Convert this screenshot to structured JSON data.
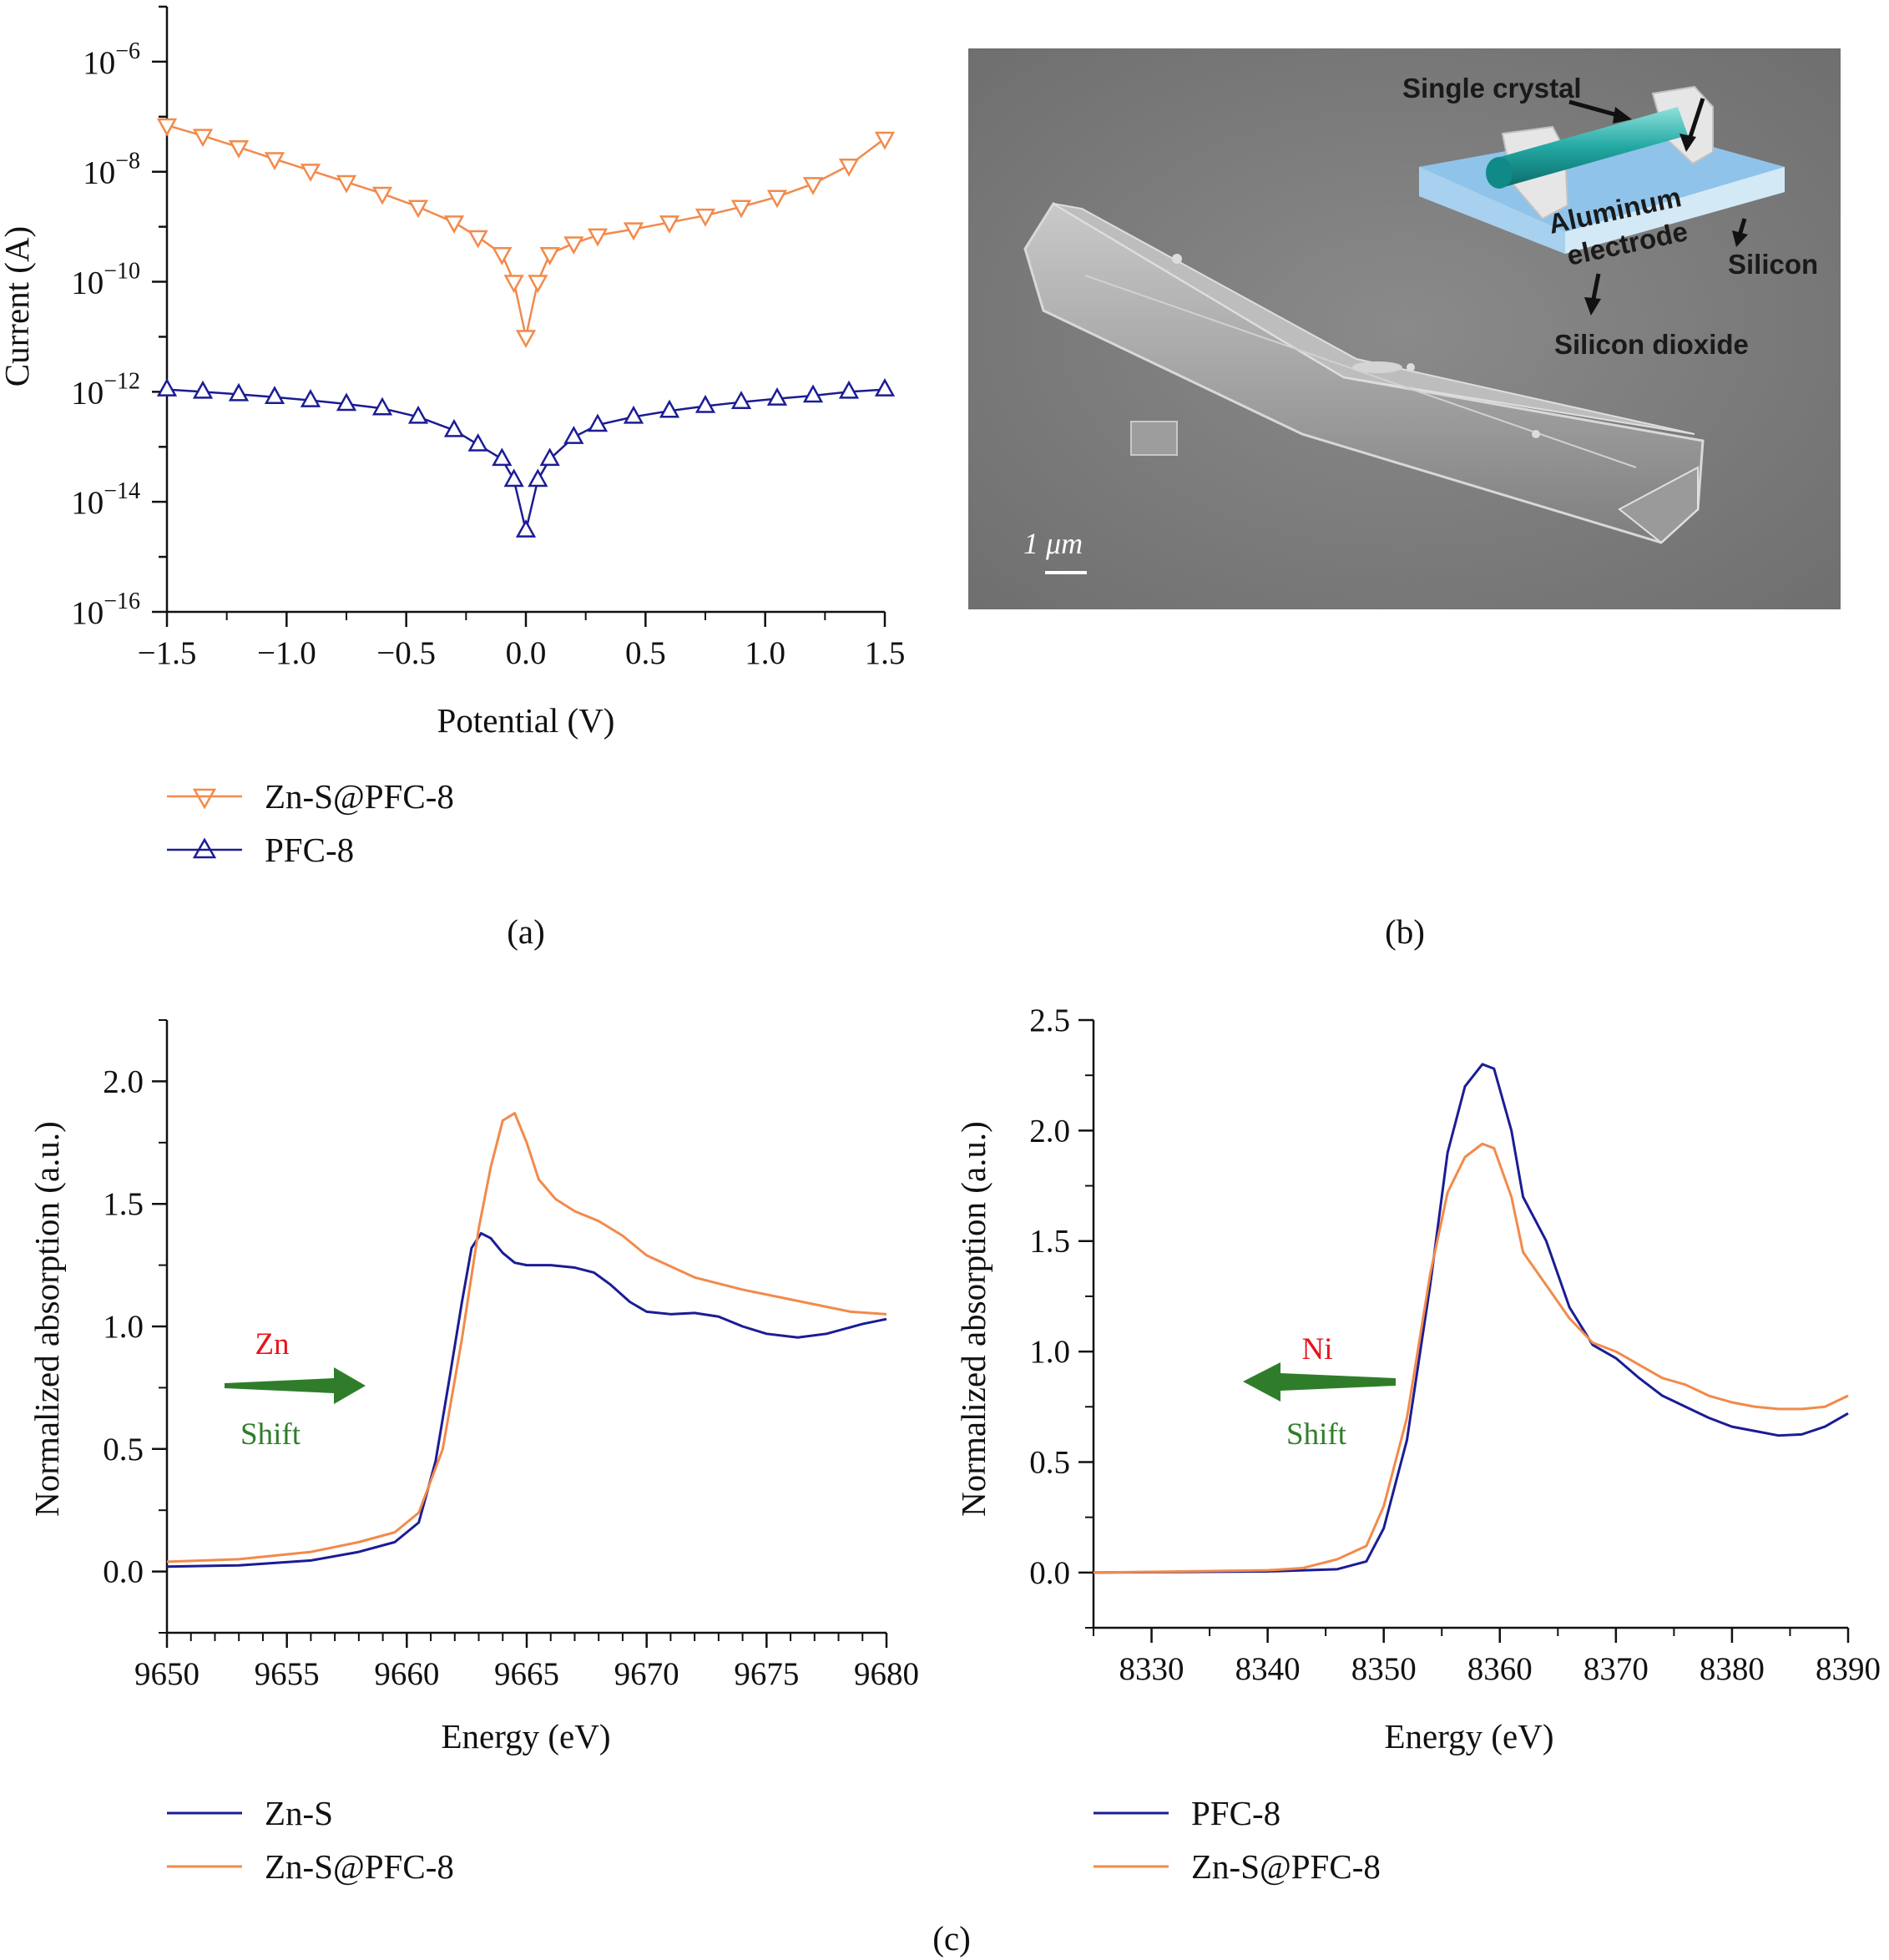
{
  "colors": {
    "orange": "#f28a4b",
    "blue": "#1b1c94",
    "green": "#2f7d2b",
    "red": "#e8131b"
  },
  "panel_labels": {
    "a": "(a)",
    "b": "(b)",
    "c": "(c)"
  },
  "chart_data": [
    {
      "id": "a",
      "type": "line",
      "xlabel": "Potential (V)",
      "ylabel": "Current (A)",
      "yscale": "log",
      "xlim": [
        -1.5,
        1.5
      ],
      "ylim_exp": [
        -16,
        -5
      ],
      "xticks": [
        "−1.5",
        "−1.0",
        "−0.5",
        "0.0",
        "0.5",
        "1.0",
        "1.5"
      ],
      "yticks_exp": [
        "−6",
        "−8",
        "−10",
        "−12",
        "−14",
        "−16"
      ],
      "legend": [
        "Zn-S@PFC-8",
        "PFC-8"
      ],
      "series": [
        {
          "name": "Zn-S@PFC-8",
          "color": "#f28a4b",
          "marker": "triangle-down",
          "x": [
            -1.5,
            -1.35,
            -1.2,
            -1.05,
            -0.9,
            -0.75,
            -0.6,
            -0.45,
            -0.3,
            -0.2,
            -0.1,
            -0.05,
            0.0,
            0.05,
            0.1,
            0.2,
            0.3,
            0.45,
            0.6,
            0.75,
            0.9,
            1.05,
            1.2,
            1.35,
            1.5
          ],
          "y": [
            7e-08,
            4.5e-08,
            2.8e-08,
            1.7e-08,
            1.05e-08,
            6.5e-09,
            4e-09,
            2.3e-09,
            1.2e-09,
            6.5e-10,
            3.2e-10,
            1e-10,
            1e-11,
            1e-10,
            3.2e-10,
            5e-10,
            7e-10,
            9e-10,
            1.2e-09,
            1.6e-09,
            2.3e-09,
            3.5e-09,
            6e-09,
            1.3e-08,
            4e-08
          ]
        },
        {
          "name": "PFC-8",
          "color": "#1b1c94",
          "marker": "triangle-up",
          "x": [
            -1.5,
            -1.35,
            -1.2,
            -1.05,
            -0.9,
            -0.75,
            -0.6,
            -0.45,
            -0.3,
            -0.2,
            -0.1,
            -0.05,
            0.0,
            0.05,
            0.1,
            0.2,
            0.3,
            0.45,
            0.6,
            0.75,
            0.9,
            1.05,
            1.2,
            1.35,
            1.5
          ],
          "y": [
            1.1e-12,
            1e-12,
            9e-13,
            8e-13,
            7e-13,
            6e-13,
            5e-13,
            3.5e-13,
            2e-13,
            1.1e-13,
            6e-14,
            2.5e-14,
            3e-15,
            2.5e-14,
            6e-14,
            1.5e-13,
            2.5e-13,
            3.5e-13,
            4.5e-13,
            5.5e-13,
            6.5e-13,
            7.5e-13,
            8.5e-13,
            1e-12,
            1.1e-12
          ]
        }
      ]
    },
    {
      "id": "c-left",
      "type": "line",
      "xlabel": "Energy (eV)",
      "ylabel": "Normalized absorption (a.u.)",
      "xlim": [
        9650,
        9680
      ],
      "ylim": [
        -0.25,
        2.25
      ],
      "xticks": [
        "9650",
        "9655",
        "9660",
        "9665",
        "9670",
        "9675",
        "9680"
      ],
      "yticks": [
        "0.0",
        "0.5",
        "1.0",
        "1.5",
        "2.0"
      ],
      "legend": [
        "Zn-S",
        "Zn-S@PFC-8"
      ],
      "series": [
        {
          "name": "Zn-S",
          "color": "#1b1c94",
          "x": [
            9650,
            9653,
            9656,
            9658,
            9659.5,
            9660.5,
            9661.2,
            9661.8,
            9662.3,
            9662.7,
            9663.1,
            9663.5,
            9664,
            9664.5,
            9665,
            9666,
            9667,
            9667.8,
            9668.5,
            9669.3,
            9670,
            9671,
            9672,
            9673,
            9674,
            9675,
            9676.3,
            9677.5,
            9679,
            9680
          ],
          "y": [
            0.02,
            0.025,
            0.045,
            0.08,
            0.12,
            0.2,
            0.45,
            0.8,
            1.1,
            1.32,
            1.38,
            1.36,
            1.3,
            1.26,
            1.25,
            1.25,
            1.24,
            1.22,
            1.17,
            1.1,
            1.06,
            1.05,
            1.055,
            1.04,
            1.0,
            0.97,
            0.955,
            0.97,
            1.01,
            1.03
          ]
        },
        {
          "name": "Zn-S@PFC-8",
          "color": "#f28a4b",
          "x": [
            9650,
            9653,
            9656,
            9658,
            9659.5,
            9660.5,
            9661.5,
            9662.3,
            9663,
            9663.5,
            9664,
            9664.5,
            9665,
            9665.5,
            9666.2,
            9667,
            9668,
            9669,
            9670,
            9672,
            9674,
            9675.5,
            9676.5,
            9677.5,
            9678.5,
            9680
          ],
          "y": [
            0.04,
            0.05,
            0.08,
            0.12,
            0.16,
            0.24,
            0.5,
            0.95,
            1.4,
            1.65,
            1.84,
            1.87,
            1.75,
            1.6,
            1.52,
            1.47,
            1.43,
            1.37,
            1.29,
            1.2,
            1.15,
            1.12,
            1.1,
            1.08,
            1.06,
            1.05
          ]
        }
      ],
      "annotations": {
        "element": "Zn",
        "shift": "Shift",
        "arrow": "right"
      }
    },
    {
      "id": "c-right",
      "type": "line",
      "xlabel": "Energy (eV)",
      "ylabel": "Normalized absorption (a.u.)",
      "xlim": [
        8325,
        8390
      ],
      "ylim": [
        -0.25,
        2.5
      ],
      "xticks": [
        "8330",
        "8340",
        "8350",
        "8360",
        "8370",
        "8380",
        "8390"
      ],
      "yticks": [
        "0.0",
        "0.5",
        "1.0",
        "1.5",
        "2.0",
        "2.5"
      ],
      "legend": [
        "PFC-8",
        "Zn-S@PFC-8"
      ],
      "series": [
        {
          "name": "PFC-8",
          "color": "#1b1c94",
          "x": [
            8325,
            8340,
            8346,
            8348.5,
            8350,
            8352,
            8354,
            8355.5,
            8357,
            8358.5,
            8359.5,
            8361,
            8362,
            8364,
            8366,
            8368,
            8370,
            8372,
            8374,
            8376,
            8378,
            8380,
            8382,
            8384,
            8386,
            8388,
            8390
          ],
          "y": [
            0,
            0.005,
            0.015,
            0.05,
            0.2,
            0.6,
            1.3,
            1.9,
            2.2,
            2.3,
            2.28,
            2.0,
            1.7,
            1.5,
            1.2,
            1.03,
            0.97,
            0.88,
            0.8,
            0.75,
            0.7,
            0.66,
            0.64,
            0.62,
            0.625,
            0.66,
            0.72
          ]
        },
        {
          "name": "Zn-S@PFC-8",
          "color": "#f28a4b",
          "x": [
            8325,
            8340,
            8343,
            8346,
            8348.5,
            8350,
            8352,
            8354,
            8355.5,
            8357,
            8358.5,
            8359.5,
            8361,
            8362,
            8364,
            8366,
            8368,
            8370,
            8372,
            8374,
            8376,
            8378,
            8380,
            8382,
            8384,
            8386,
            8388,
            8390
          ],
          "y": [
            0,
            0.01,
            0.02,
            0.06,
            0.12,
            0.3,
            0.7,
            1.35,
            1.72,
            1.88,
            1.94,
            1.92,
            1.7,
            1.45,
            1.3,
            1.15,
            1.04,
            1.0,
            0.94,
            0.88,
            0.85,
            0.8,
            0.77,
            0.75,
            0.74,
            0.74,
            0.75,
            0.8
          ]
        }
      ],
      "annotations": {
        "element": "Ni",
        "shift": "Shift",
        "arrow": "left"
      }
    }
  ],
  "image_panel": {
    "scale_bar": "1 μm",
    "labels": {
      "single_crystal": "Single crystal",
      "aluminum": "Aluminum",
      "electrode": "electrode",
      "silicon": "Silicon",
      "silicon_dioxide": "Silicon dioxide"
    }
  }
}
